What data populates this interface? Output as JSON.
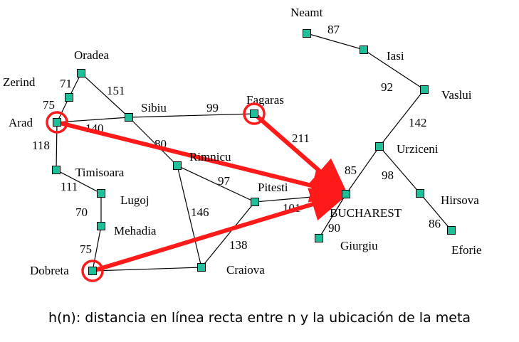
{
  "colors": {
    "node_fill": "#1fbf9a",
    "node_stroke": "#000000",
    "edge": "#000000",
    "highlight": "#ff1a1a"
  },
  "cities": [
    {
      "id": "neamt",
      "label": "Neamt"
    },
    {
      "id": "iasi",
      "label": "Iasi"
    },
    {
      "id": "vaslui",
      "label": "Vaslui"
    },
    {
      "id": "urziceni",
      "label": "Urziceni"
    },
    {
      "id": "hirsova",
      "label": "Hirsova"
    },
    {
      "id": "eforie",
      "label": "Eforie"
    },
    {
      "id": "bucharest",
      "label": "BUCHAREST"
    },
    {
      "id": "giurgiu",
      "label": "Giurgiu"
    },
    {
      "id": "fagaras",
      "label": "Fagaras"
    },
    {
      "id": "pitesti",
      "label": "Pitesti"
    },
    {
      "id": "rimnicu",
      "label": "Rimnicu"
    },
    {
      "id": "sibiu",
      "label": "Sibiu"
    },
    {
      "id": "oradea",
      "label": "Oradea"
    },
    {
      "id": "zerind",
      "label": "Zerind"
    },
    {
      "id": "arad",
      "label": "Arad"
    },
    {
      "id": "timisoara",
      "label": "Timisoara"
    },
    {
      "id": "lugoj",
      "label": "Lugoj"
    },
    {
      "id": "mehadia",
      "label": "Mehadia"
    },
    {
      "id": "dobreta",
      "label": "Dobreta"
    },
    {
      "id": "craiova",
      "label": "Craiova"
    }
  ],
  "roads": [
    {
      "from": "neamt",
      "to": "iasi",
      "distance": "87"
    },
    {
      "from": "iasi",
      "to": "vaslui",
      "distance": "92"
    },
    {
      "from": "vaslui",
      "to": "urziceni",
      "distance": "142"
    },
    {
      "from": "urziceni",
      "to": "hirsova",
      "distance": "98"
    },
    {
      "from": "hirsova",
      "to": "eforie",
      "distance": "86"
    },
    {
      "from": "urziceni",
      "to": "bucharest",
      "distance": "85"
    },
    {
      "from": "bucharest",
      "to": "giurgiu",
      "distance": "90"
    },
    {
      "from": "fagaras",
      "to": "bucharest",
      "distance": "211"
    },
    {
      "from": "pitesti",
      "to": "bucharest",
      "distance": "101"
    },
    {
      "from": "rimnicu",
      "to": "pitesti",
      "distance": "97"
    },
    {
      "from": "sibiu",
      "to": "fagaras",
      "distance": "99"
    },
    {
      "from": "sibiu",
      "to": "rimnicu",
      "distance": "80"
    },
    {
      "from": "oradea",
      "to": "sibiu",
      "distance": "151"
    },
    {
      "from": "zerind",
      "to": "oradea",
      "distance": "71"
    },
    {
      "from": "arad",
      "to": "zerind",
      "distance": "75"
    },
    {
      "from": "arad",
      "to": "sibiu",
      "distance": "140"
    },
    {
      "from": "arad",
      "to": "timisoara",
      "distance": "118"
    },
    {
      "from": "timisoara",
      "to": "lugoj",
      "distance": "111"
    },
    {
      "from": "lugoj",
      "to": "mehadia",
      "distance": "70"
    },
    {
      "from": "mehadia",
      "to": "dobreta",
      "distance": "75"
    },
    {
      "from": "dobreta",
      "to": "craiova",
      "distance": ""
    },
    {
      "from": "rimnicu",
      "to": "craiova",
      "distance": "146"
    },
    {
      "from": "pitesti",
      "to": "craiova",
      "distance": "138"
    }
  ],
  "highlighted_cities": [
    "arad",
    "fagaras",
    "dobreta"
  ],
  "heuristic_arrows": [
    {
      "from": "arad",
      "to": "bucharest"
    },
    {
      "from": "fagaras",
      "to": "bucharest"
    },
    {
      "from": "dobreta",
      "to": "bucharest"
    }
  ],
  "caption": "h(n): distancia en línea recta entre n y la ubicación de la meta"
}
